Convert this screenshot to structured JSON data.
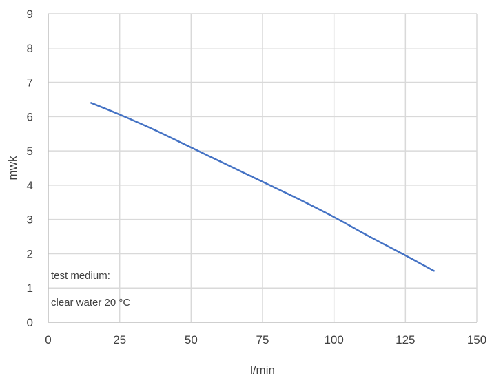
{
  "chart_data": {
    "type": "line",
    "xlabel": "l/min",
    "ylabel": "mwk",
    "xlim": [
      0,
      150
    ],
    "ylim": [
      0,
      9
    ],
    "x_ticks": [
      "0",
      "25",
      "50",
      "75",
      "100",
      "125",
      "150"
    ],
    "y_ticks": [
      "0",
      "1",
      "2",
      "3",
      "4",
      "5",
      "6",
      "7",
      "8",
      "9"
    ],
    "grid": true,
    "legend": "none",
    "series": [
      {
        "color": "#4472c4",
        "x": [
          15,
          25,
          37,
          50,
          62,
          75,
          87,
          100,
          112,
          125,
          135
        ],
        "y": [
          6.4,
          6.06,
          5.62,
          5.1,
          4.62,
          4.1,
          3.62,
          3.07,
          2.52,
          1.95,
          1.5
        ]
      }
    ],
    "annotations": [
      "test medium:",
      "clear water  20 °C"
    ]
  }
}
